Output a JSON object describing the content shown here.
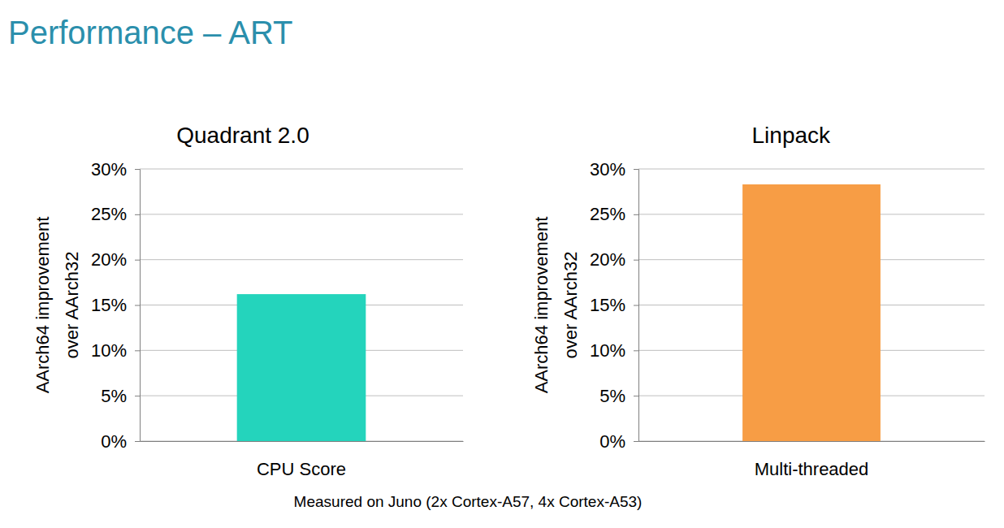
{
  "header": {
    "title": "Performance – ART"
  },
  "footer": {
    "text": "Measured on Juno (2x Cortex-A57, 4x Cortex-A53)"
  },
  "chart_data": [
    {
      "type": "bar",
      "title": "Quadrant 2.0",
      "y_label": [
        "AArch64 improvement",
        "over AArch32"
      ],
      "categories": [
        "CPU Score"
      ],
      "values": [
        16.2
      ],
      "color": "#24d4bc",
      "ylim": [
        0,
        30
      ],
      "yticks": [
        {
          "value": 0,
          "label": "0%"
        },
        {
          "value": 5,
          "label": "5%"
        },
        {
          "value": 10,
          "label": "10%"
        },
        {
          "value": 15,
          "label": "15%"
        },
        {
          "value": 20,
          "label": "20%"
        },
        {
          "value": 25,
          "label": "25%"
        },
        {
          "value": 30,
          "label": "30%"
        }
      ],
      "grid": true
    },
    {
      "type": "bar",
      "title": "Linpack",
      "y_label": [
        "AArch64 improvement",
        "over AArch32"
      ],
      "categories": [
        "Multi-threaded"
      ],
      "values": [
        28.3
      ],
      "color": "#f79d45",
      "ylim": [
        0,
        30
      ],
      "yticks": [
        {
          "value": 0,
          "label": "0%"
        },
        {
          "value": 5,
          "label": "5%"
        },
        {
          "value": 10,
          "label": "10%"
        },
        {
          "value": 15,
          "label": "15%"
        },
        {
          "value": 20,
          "label": "20%"
        },
        {
          "value": 25,
          "label": "25%"
        },
        {
          "value": 30,
          "label": "30%"
        }
      ],
      "grid": true
    }
  ]
}
